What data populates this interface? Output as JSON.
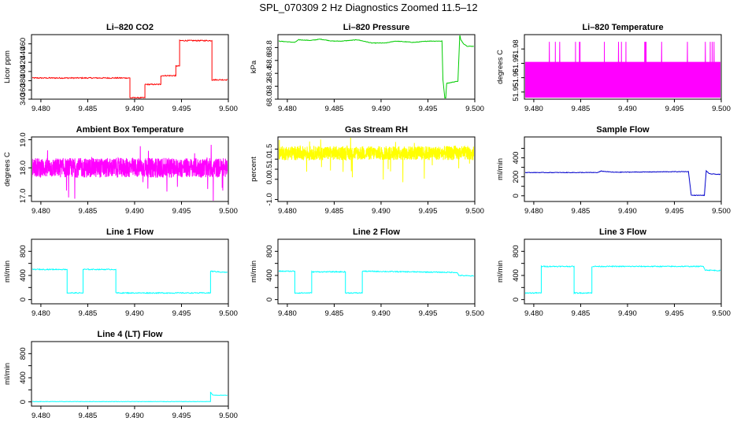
{
  "title": "SPL_070309  2 Hz Diagnostics Zoomed 11.5–12",
  "chart_data": [
    {
      "type": "line",
      "title": "Li–820 CO2",
      "ylabel": "Licor ppm",
      "color": "#ff0000",
      "xlim": [
        9.479,
        9.5
      ],
      "ylim": [
        340,
        480
      ],
      "xticks": [
        9.48,
        9.485,
        9.49,
        9.495,
        9.5
      ],
      "xtick_labels": [
        "9.480",
        "9.485",
        "9.490",
        "9.495",
        "9.500"
      ],
      "yticks": [
        340,
        360,
        380,
        400,
        420,
        440,
        460
      ],
      "ytick_labels": [
        "340",
        "360",
        "380",
        "400",
        "420",
        "440",
        "460"
      ],
      "series": [
        {
          "name": "CO2",
          "x": [
            9.479,
            9.4895,
            9.4895,
            9.4911,
            9.4911,
            9.4928,
            9.4928,
            9.4944,
            9.4944,
            9.4948,
            9.4948,
            9.49825,
            9.49825,
            9.4999
          ],
          "y": [
            386,
            386,
            343,
            343,
            372,
            372,
            391,
            391,
            412,
            412,
            467,
            467,
            382,
            382
          ],
          "noise": 1.2
        }
      ]
    },
    {
      "type": "line",
      "title": "Li–820 Pressure",
      "ylabel": "kPa",
      "color": "#00cc00",
      "xlim": [
        9.479,
        9.5
      ],
      "ylim": [
        68.0,
        69.0
      ],
      "xticks": [
        9.48,
        9.485,
        9.49,
        9.495,
        9.5
      ],
      "xtick_labels": [
        "9.480",
        "9.485",
        "9.490",
        "9.495",
        "9.500"
      ],
      "yticks": [
        68.0,
        68.2,
        68.4,
        68.6,
        68.8
      ],
      "ytick_labels": [
        "68.0",
        "68.2",
        "68.4",
        "68.6",
        "68.8"
      ],
      "series": [
        {
          "name": "Pressure",
          "x": [
            9.479,
            9.4808,
            9.4812,
            9.4825,
            9.4835,
            9.4848,
            9.4858,
            9.4875,
            9.489,
            9.4905,
            9.4915,
            9.4935,
            9.495,
            9.4965,
            9.4966,
            9.4968,
            9.4969,
            9.497,
            9.4972,
            9.4982,
            9.4984,
            9.4985,
            9.4988,
            9.4992,
            9.4999
          ],
          "y": [
            68.9,
            68.88,
            68.92,
            68.91,
            68.93,
            68.9,
            68.9,
            68.92,
            68.87,
            68.87,
            68.9,
            68.88,
            68.9,
            68.9,
            68.3,
            68.02,
            68.02,
            68.25,
            68.25,
            68.28,
            69.0,
            68.92,
            68.86,
            68.82,
            68.82
          ],
          "noise": 0.004
        }
      ]
    },
    {
      "type": "line",
      "title": "Li–820 Temperature",
      "ylabel": "degrees C",
      "color": "#ff00ff",
      "xlim": [
        9.479,
        9.5
      ],
      "ylim": [
        51.945,
        51.99
      ],
      "xticks": [
        9.48,
        9.485,
        9.49,
        9.495,
        9.5
      ],
      "xtick_labels": [
        "9.480",
        "9.485",
        "9.490",
        "9.495",
        "9.500"
      ],
      "yticks": [
        51.95,
        51.96,
        51.97,
        51.98
      ],
      "ytick_labels": [
        "51.95",
        "51.96",
        "51.97",
        "51.98"
      ],
      "series": [
        {
          "name": "Temperature",
          "mode": "quantized",
          "levels": [
            51.946,
            51.971
          ],
          "spike": 51.985,
          "spike_prob": 0.012,
          "x0": 9.479,
          "x1": 9.4999,
          "n": 1400
        }
      ]
    },
    {
      "type": "line",
      "title": "Ambient Box Temperature",
      "ylabel": "degrees C",
      "color": "#ff00ff",
      "xlim": [
        9.479,
        9.5
      ],
      "ylim": [
        16.8,
        19.1
      ],
      "xticks": [
        9.48,
        9.485,
        9.49,
        9.495,
        9.5
      ],
      "xtick_labels": [
        "9.480",
        "9.485",
        "9.490",
        "9.495",
        "9.500"
      ],
      "yticks": [
        17.0,
        18.0,
        19.0
      ],
      "ytick_labels": [
        "17.0",
        "18.0",
        "19.0"
      ],
      "series": [
        {
          "name": "Box Temperature",
          "mode": "noise",
          "mean": 18.0,
          "amp": 0.35,
          "spike": 0.75,
          "x0": 9.479,
          "x1": 9.4999,
          "n": 1400
        }
      ]
    },
    {
      "type": "line",
      "title": "Gas Stream RH",
      "ylabel": "percent",
      "color": "#ffff00",
      "xlim": [
        9.479,
        9.5
      ],
      "ylim": [
        -1.1,
        2.1
      ],
      "xticks": [
        9.48,
        9.485,
        9.49,
        9.495,
        9.5
      ],
      "xtick_labels": [
        "9.480",
        "9.485",
        "9.490",
        "9.495",
        "9.500"
      ],
      "yticks": [
        -1.0,
        0.0,
        0.5,
        1.0,
        1.5
      ],
      "ytick_labels": [
        "-1.0",
        "0.0",
        "0.5",
        "1.0",
        "1.5"
      ],
      "series": [
        {
          "name": "RH",
          "mode": "noise",
          "mean": 1.3,
          "amp": 0.35,
          "spike": 0.9,
          "x0": 9.479,
          "x1": 9.4999,
          "n": 1400
        }
      ]
    },
    {
      "type": "line",
      "title": "Sample Flow",
      "ylabel": "ml/min",
      "color": "#0000cc",
      "xlim": [
        9.479,
        9.5
      ],
      "ylim": [
        -60,
        620
      ],
      "xticks": [
        9.48,
        9.485,
        9.49,
        9.495,
        9.5
      ],
      "xtick_labels": [
        "9.480",
        "9.485",
        "9.490",
        "9.495",
        "9.500"
      ],
      "yticks": [
        0,
        100,
        200,
        300,
        400,
        500
      ],
      "ytick_labels": [
        "0",
        "",
        "200",
        "",
        "400",
        ""
      ],
      "series": [
        {
          "name": "Sample Flow",
          "x": [
            9.479,
            9.4868,
            9.4872,
            9.4885,
            9.4965,
            9.4968,
            9.4982,
            9.4984,
            9.4987,
            9.4999
          ],
          "y": [
            245,
            245,
            260,
            248,
            255,
            5,
            5,
            265,
            232,
            225
          ],
          "noise": 3
        }
      ]
    },
    {
      "type": "line",
      "title": "Line 1 Flow",
      "ylabel": "ml/min",
      "color": "#00ffff",
      "xlim": [
        9.479,
        9.5
      ],
      "ylim": [
        -70,
        1000
      ],
      "xticks": [
        9.48,
        9.485,
        9.49,
        9.495,
        9.5
      ],
      "xtick_labels": [
        "9.480",
        "9.485",
        "9.490",
        "9.495",
        "9.500"
      ],
      "yticks": [
        0,
        200,
        400,
        600,
        800
      ],
      "ytick_labels": [
        "0",
        "",
        "400",
        "",
        "800"
      ],
      "series": [
        {
          "name": "Line 1",
          "x": [
            9.479,
            9.4828,
            9.4828,
            9.4845,
            9.4845,
            9.488,
            9.488,
            9.4981,
            9.4981,
            9.4999
          ],
          "y": [
            500,
            500,
            110,
            110,
            500,
            500,
            110,
            110,
            470,
            450
          ],
          "noise": 8
        }
      ]
    },
    {
      "type": "line",
      "title": "Line 2 Flow",
      "ylabel": "ml/min",
      "color": "#00ffff",
      "xlim": [
        9.479,
        9.5
      ],
      "ylim": [
        -70,
        1000
      ],
      "xticks": [
        9.48,
        9.485,
        9.49,
        9.495,
        9.5
      ],
      "xtick_labels": [
        "9.480",
        "9.485",
        "9.490",
        "9.495",
        "9.500"
      ],
      "yticks": [
        0,
        200,
        400,
        600,
        800
      ],
      "ytick_labels": [
        "0",
        "",
        "400",
        "",
        "800"
      ],
      "series": [
        {
          "name": "Line 2",
          "x": [
            9.479,
            9.4808,
            9.4808,
            9.4826,
            9.4826,
            9.4862,
            9.4862,
            9.488,
            9.488,
            9.4981,
            9.4983,
            9.4999
          ],
          "y": [
            470,
            470,
            110,
            110,
            460,
            460,
            110,
            110,
            470,
            450,
            400,
            390
          ],
          "noise": 8
        }
      ]
    },
    {
      "type": "line",
      "title": "Line 3 Flow",
      "ylabel": "ml/min",
      "color": "#00ffff",
      "xlim": [
        9.479,
        9.5
      ],
      "ylim": [
        -70,
        1000
      ],
      "xticks": [
        9.48,
        9.485,
        9.49,
        9.495,
        9.5
      ],
      "xtick_labels": [
        "9.480",
        "9.485",
        "9.490",
        "9.495",
        "9.500"
      ],
      "yticks": [
        0,
        200,
        400,
        600,
        800
      ],
      "ytick_labels": [
        "0",
        "",
        "400",
        "",
        "800"
      ],
      "series": [
        {
          "name": "Line 3",
          "x": [
            9.479,
            9.4808,
            9.4808,
            9.4843,
            9.4843,
            9.4862,
            9.4862,
            9.4981,
            9.4983,
            9.4999
          ],
          "y": [
            110,
            110,
            550,
            550,
            110,
            110,
            550,
            550,
            490,
            480
          ],
          "noise": 8
        }
      ]
    },
    {
      "type": "line",
      "title": "Line 4 (LT) Flow",
      "ylabel": "ml/min",
      "color": "#00ffff",
      "xlim": [
        9.479,
        9.5
      ],
      "ylim": [
        -70,
        1000
      ],
      "xticks": [
        9.48,
        9.485,
        9.49,
        9.495,
        9.5
      ],
      "xtick_labels": [
        "9.480",
        "9.485",
        "9.490",
        "9.495",
        "9.500"
      ],
      "yticks": [
        0,
        200,
        400,
        600,
        800
      ],
      "ytick_labels": [
        "0",
        "",
        "400",
        "",
        "800"
      ],
      "series": [
        {
          "name": "Line 4",
          "x": [
            9.479,
            9.4981,
            9.4981,
            9.4983,
            9.4984,
            9.4999
          ],
          "y": [
            5,
            5,
            160,
            120,
            110,
            110
          ],
          "noise": 3
        }
      ]
    }
  ]
}
